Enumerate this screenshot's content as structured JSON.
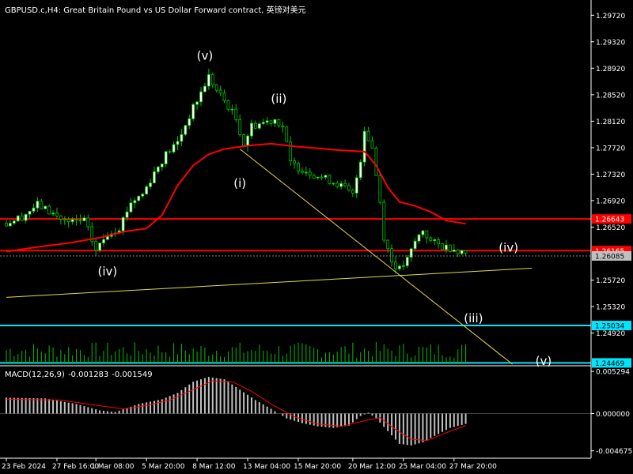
{
  "header": {
    "title": "GBPUSD.c,H4: Great Britain Pound vs US Dollar Forward contract, 英镑对美元"
  },
  "colors": {
    "background": "#000000",
    "axis": "#ffffff",
    "candle_bull_fill": "#ffffff",
    "candle_bear_fill": "#000000",
    "candle_outline": "#00c000",
    "moving_average": "#ff0000",
    "resistance_line": "#ff0000",
    "support_line": "#00e5ff",
    "trend_line": "#e8d84a",
    "volume": "#00c000",
    "macd_histogram": "#c0c0c0",
    "macd_signal": "#ff0000",
    "price_label_red": "#ff0000",
    "price_label_cyan": "#00e5ff",
    "current_price_label": "#c0c0c0"
  },
  "chart_data": [
    {
      "type": "candlestick",
      "title": "GBPUSD.c,H4: Great Britain Pound vs US Dollar Forward contract, 英镑对美元",
      "ylim": [
        1.2445,
        1.2995
      ],
      "price_ticks": [
        "1.29720",
        "1.29320",
        "1.28920",
        "1.28520",
        "1.28120",
        "1.27720",
        "1.27320",
        "1.26920",
        "1.26520",
        "1.25720",
        "1.25320",
        "1.24920"
      ],
      "x_ticks": [
        {
          "index": 0,
          "label": "23 Feb 2024"
        },
        {
          "index": 13,
          "label": "27 Feb 16:00"
        },
        {
          "index": 23,
          "label": "1 Mar 08:00"
        },
        {
          "index": 36,
          "label": "5 Mar 20:00"
        },
        {
          "index": 49,
          "label": "8 Mar 12:00"
        },
        {
          "index": 62,
          "label": "13 Mar 04:00"
        },
        {
          "index": 75,
          "label": "15 Mar 20:00"
        },
        {
          "index": 89,
          "label": "20 Mar 12:00"
        },
        {
          "index": 102,
          "label": "25 Mar 04:00"
        },
        {
          "index": 115,
          "label": "27 Mar 20:00"
        }
      ],
      "close_path": [
        [
          0,
          1.2658
        ],
        [
          4,
          1.2668
        ],
        [
          8,
          1.2686
        ],
        [
          12,
          1.2672
        ],
        [
          16,
          1.2658
        ],
        [
          20,
          1.2662
        ],
        [
          23,
          1.2617
        ],
        [
          26,
          1.2642
        ],
        [
          29,
          1.2652
        ],
        [
          32,
          1.269
        ],
        [
          35,
          1.2702
        ],
        [
          38,
          1.2735
        ],
        [
          41,
          1.2762
        ],
        [
          44,
          1.278
        ],
        [
          47,
          1.282
        ],
        [
          50,
          1.2855
        ],
        [
          52,
          1.288
        ],
        [
          54,
          1.2858
        ],
        [
          57,
          1.2835
        ],
        [
          59,
          1.2815
        ],
        [
          61,
          1.2778
        ],
        [
          63,
          1.2805
        ],
        [
          66,
          1.281
        ],
        [
          69,
          1.2815
        ],
        [
          71,
          1.2804
        ],
        [
          73,
          1.2748
        ],
        [
          76,
          1.274
        ],
        [
          79,
          1.2732
        ],
        [
          82,
          1.2725
        ],
        [
          85,
          1.2718
        ],
        [
          87,
          1.271
        ],
        [
          89,
          1.27
        ],
        [
          91,
          1.2755
        ],
        [
          92,
          1.28
        ],
        [
          94,
          1.2772
        ],
        [
          96,
          1.269
        ],
        [
          97,
          1.2638
        ],
        [
          99,
          1.26
        ],
        [
          101,
          1.2588
        ],
        [
          103,
          1.2602
        ],
        [
          105,
          1.263
        ],
        [
          107,
          1.2648
        ],
        [
          109,
          1.263
        ],
        [
          112,
          1.2623
        ],
        [
          115,
          1.262
        ],
        [
          118,
          1.2613
        ]
      ],
      "moving_average": [
        [
          0,
          1.2615
        ],
        [
          8,
          1.2622
        ],
        [
          16,
          1.2628
        ],
        [
          24,
          1.2636
        ],
        [
          30,
          1.2645
        ],
        [
          36,
          1.265
        ],
        [
          40,
          1.267
        ],
        [
          44,
          1.2715
        ],
        [
          48,
          1.2745
        ],
        [
          52,
          1.2762
        ],
        [
          56,
          1.277
        ],
        [
          62,
          1.2775
        ],
        [
          68,
          1.2778
        ],
        [
          74,
          1.2774
        ],
        [
          80,
          1.2771
        ],
        [
          86,
          1.2768
        ],
        [
          92,
          1.2766
        ],
        [
          95,
          1.2745
        ],
        [
          98,
          1.2712
        ],
        [
          101,
          1.269
        ],
        [
          105,
          1.2684
        ],
        [
          109,
          1.2675
        ],
        [
          113,
          1.2662
        ],
        [
          118,
          1.2657
        ]
      ],
      "horizontal_levels": [
        {
          "value": 1.26643,
          "label": "1.26643",
          "color": "red"
        },
        {
          "value": 1.26165,
          "label": "1.26165",
          "color": "red"
        },
        {
          "value": 1.25034,
          "label": "1.25034",
          "color": "cyan"
        },
        {
          "value": 1.24469,
          "label": "1.24469",
          "color": "cyan"
        }
      ],
      "current_price": {
        "value": 1.26085,
        "label": "1.26085"
      },
      "trend_lines": [
        {
          "from": [
            0,
            1.2546
          ],
          "to": [
            135,
            1.259
          ]
        },
        {
          "from": [
            60,
            1.277
          ],
          "to": [
            130,
            1.2445
          ]
        }
      ],
      "annotations": [
        {
          "text": "(v)",
          "index": 51,
          "price": 1.2905
        },
        {
          "text": "(ii)",
          "index": 70,
          "price": 1.284
        },
        {
          "text": "(i)",
          "index": 60,
          "price": 1.2712
        },
        {
          "text": "(iv)",
          "index": 26,
          "price": 1.2579
        },
        {
          "text": "(iv)",
          "index": 129,
          "price": 1.2615
        },
        {
          "text": "(iii)",
          "index": 120,
          "price": 1.2508
        },
        {
          "text": "(v)",
          "index": 138,
          "price": 1.2444
        }
      ]
    },
    {
      "type": "bar",
      "title": "MACD(12,26,9) -0.001283 -0.001549",
      "ylim": [
        -0.0056,
        0.0058
      ],
      "y_ticks": [
        "0.005294",
        "0.000000",
        "-0.004675"
      ],
      "macd_path": [
        [
          0,
          0.002
        ],
        [
          10,
          0.0019
        ],
        [
          18,
          0.0012
        ],
        [
          24,
          0.0004
        ],
        [
          28,
          0.0002
        ],
        [
          34,
          0.0012
        ],
        [
          40,
          0.0018
        ],
        [
          44,
          0.0026
        ],
        [
          48,
          0.004
        ],
        [
          52,
          0.0046
        ],
        [
          56,
          0.0043
        ],
        [
          60,
          0.003
        ],
        [
          64,
          0.0017
        ],
        [
          68,
          0.0006
        ],
        [
          72,
          -0.0006
        ],
        [
          76,
          -0.0012
        ],
        [
          80,
          -0.0016
        ],
        [
          84,
          -0.0018
        ],
        [
          88,
          -0.0015
        ],
        [
          91,
          -0.0003
        ],
        [
          93,
          0.0001
        ],
        [
          95,
          -0.0006
        ],
        [
          98,
          -0.0022
        ],
        [
          101,
          -0.0038
        ],
        [
          104,
          -0.004
        ],
        [
          107,
          -0.0036
        ],
        [
          110,
          -0.0028
        ],
        [
          114,
          -0.0018
        ],
        [
          118,
          -0.0013
        ]
      ],
      "signal_path": [
        [
          0,
          0.0018
        ],
        [
          14,
          0.0017
        ],
        [
          22,
          0.0011
        ],
        [
          30,
          0.0006
        ],
        [
          36,
          0.001
        ],
        [
          42,
          0.0017
        ],
        [
          48,
          0.003
        ],
        [
          53,
          0.0041
        ],
        [
          58,
          0.004
        ],
        [
          63,
          0.0028
        ],
        [
          68,
          0.0012
        ],
        [
          74,
          -0.0004
        ],
        [
          80,
          -0.0013
        ],
        [
          86,
          -0.0016
        ],
        [
          92,
          -0.0009
        ],
        [
          96,
          -0.0005
        ],
        [
          100,
          -0.002
        ],
        [
          104,
          -0.0032
        ],
        [
          108,
          -0.0034
        ],
        [
          112,
          -0.0026
        ],
        [
          118,
          -0.0015
        ]
      ]
    }
  ],
  "macd_panel": {
    "name": "MACD(12,26,9)",
    "macd_value": "-0.001283",
    "signal_value": "-0.001549"
  }
}
